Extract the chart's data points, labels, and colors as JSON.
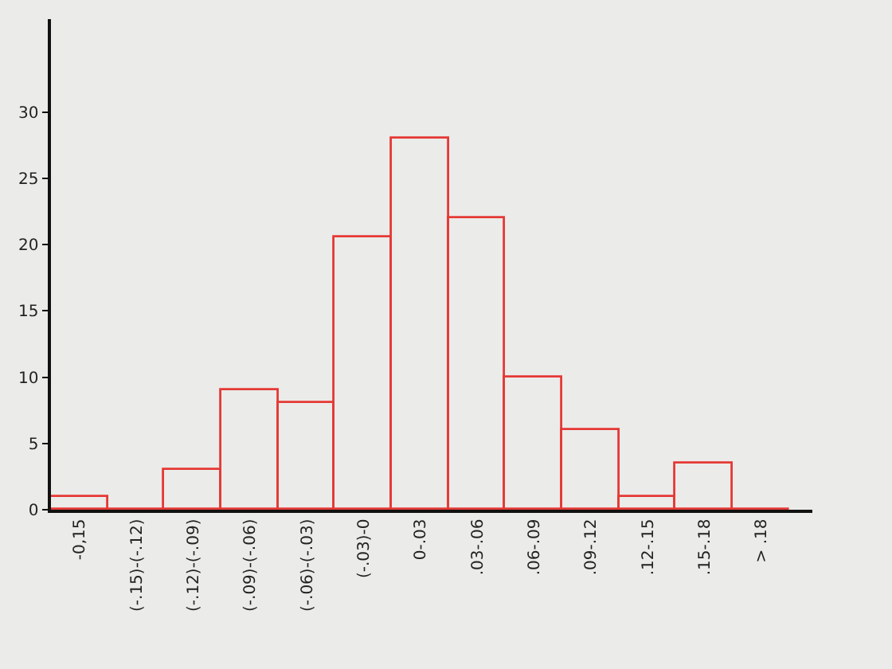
{
  "chart_data": {
    "type": "bar",
    "categories": [
      "-0,15",
      "(-.15)-(-.12)",
      "(-.12)-(-.09)",
      "(-.09)-(-.06)",
      "(-.06)-(-.03)",
      "(-.03)-0",
      "0-.03",
      ".03-.06",
      ".06-.09",
      ".09-.12",
      ".12-.15",
      ".15-.18",
      "> .18"
    ],
    "values": [
      1,
      0,
      3,
      9,
      8,
      20.5,
      28,
      22,
      10,
      6,
      1,
      3.5,
      0
    ],
    "color": "#e53935",
    "ylim": [
      0,
      37
    ],
    "yticks": [
      0,
      5,
      10,
      15,
      20,
      25,
      30
    ]
  }
}
